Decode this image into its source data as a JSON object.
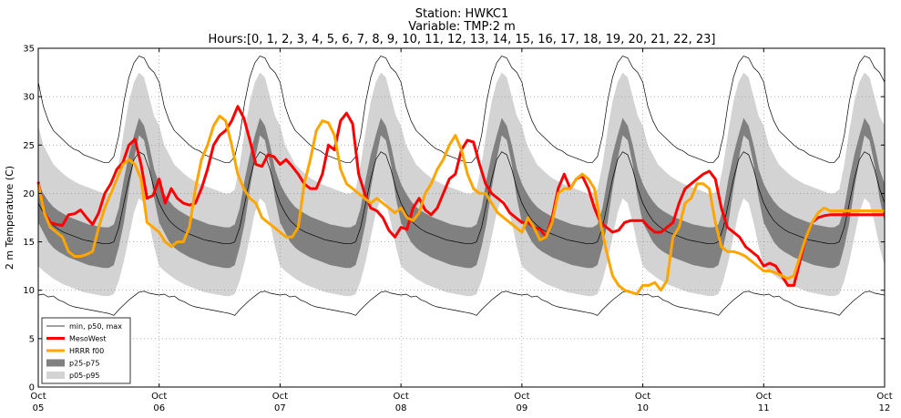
{
  "chart_data": {
    "type": "line",
    "title_lines": [
      "Station: HWKC1",
      "Variable: TMP:2 m",
      "Hours:[0, 1, 2, 3, 4, 5, 6, 7, 8, 9, 10, 11, 12, 13, 14, 15, 16, 17, 18, 19, 20, 21, 22, 23]"
    ],
    "ylabel": "2 m Temperature (C)",
    "xlabel": "",
    "ylim": [
      0,
      35
    ],
    "yticks": [
      0,
      5,
      10,
      15,
      20,
      25,
      30,
      35
    ],
    "xlim": [
      0,
      7
    ],
    "xticks": [
      {
        "x": 0,
        "line1": "Oct",
        "line2": "05"
      },
      {
        "x": 1,
        "line1": "Oct",
        "line2": "06"
      },
      {
        "x": 2,
        "line1": "Oct",
        "line2": "07"
      },
      {
        "x": 3,
        "line1": "Oct",
        "line2": "08"
      },
      {
        "x": 4,
        "line1": "Oct",
        "line2": "09"
      },
      {
        "x": 5,
        "line1": "Oct",
        "line2": "10"
      },
      {
        "x": 6,
        "line1": "Oct",
        "line2": "11"
      },
      {
        "x": 7,
        "line1": "Oct",
        "line2": "12"
      }
    ],
    "grid": true,
    "legend_position": "bottom-left",
    "legend": [
      {
        "label": "min, p50, max",
        "kind": "thin-line",
        "color": "#000000"
      },
      {
        "label": "MesoWest",
        "kind": "thick-line",
        "color": "#ff0000"
      },
      {
        "label": "HRRR f00",
        "kind": "thick-line",
        "color": "#ffa500"
      },
      {
        "label": "p25-p75",
        "kind": "patch",
        "color": "#808080"
      },
      {
        "label": "p05-p95",
        "kind": "patch",
        "color": "#d3d3d3"
      }
    ],
    "climatology_by_hour": {
      "hours": [
        0,
        1,
        2,
        3,
        4,
        5,
        6,
        7,
        8,
        9,
        10,
        11,
        12,
        13,
        14,
        15,
        16,
        17,
        18,
        19,
        20,
        21,
        22,
        23
      ],
      "min": [
        9.5,
        9.6,
        9.3,
        9.4,
        9.0,
        8.8,
        8.5,
        8.3,
        8.2,
        8.1,
        8.0,
        7.9,
        7.8,
        7.7,
        7.6,
        7.4,
        8.0,
        8.5,
        9.0,
        9.4,
        9.8,
        9.9,
        9.7,
        9.6
      ],
      "p05": [
        12.5,
        12.0,
        11.6,
        11.2,
        10.9,
        10.6,
        10.4,
        10.2,
        10.0,
        9.8,
        9.7,
        9.6,
        9.5,
        9.4,
        9.4,
        9.6,
        11.0,
        13.0,
        15.5,
        18.0,
        19.5,
        19.0,
        17.0,
        14.5
      ],
      "p25": [
        17.0,
        16.0,
        15.0,
        14.4,
        14.0,
        13.7,
        13.4,
        13.2,
        13.0,
        12.8,
        12.6,
        12.5,
        12.4,
        12.3,
        12.3,
        12.6,
        14.5,
        17.0,
        20.5,
        23.5,
        26.0,
        25.5,
        23.0,
        19.5
      ],
      "p50": [
        19.0,
        18.0,
        17.2,
        16.7,
        16.3,
        16.0,
        15.8,
        15.6,
        15.4,
        15.2,
        15.1,
        15.0,
        14.9,
        14.8,
        14.8,
        15.0,
        16.5,
        19.0,
        21.5,
        23.5,
        24.3,
        24.0,
        22.5,
        20.5
      ],
      "p75": [
        21.0,
        20.0,
        19.2,
        18.6,
        18.2,
        17.9,
        17.6,
        17.4,
        17.2,
        17.0,
        16.8,
        16.7,
        16.6,
        16.5,
        16.5,
        16.8,
        18.5,
        21.5,
        24.0,
        26.0,
        27.8,
        27.0,
        25.0,
        22.5
      ],
      "p95": [
        27.0,
        25.0,
        24.0,
        23.0,
        22.5,
        22.0,
        21.6,
        21.3,
        21.0,
        20.8,
        20.6,
        20.4,
        20.2,
        20.0,
        20.0,
        20.4,
        23.0,
        26.5,
        29.5,
        31.5,
        32.5,
        32.0,
        30.0,
        28.0
      ],
      "max": [
        31.5,
        29.0,
        27.5,
        26.5,
        26.0,
        25.5,
        25.0,
        24.6,
        24.4,
        24.0,
        23.8,
        23.6,
        23.4,
        23.2,
        23.2,
        23.8,
        26.0,
        29.5,
        32.0,
        33.5,
        34.2,
        34.0,
        33.0,
        32.5
      ]
    },
    "series": [
      {
        "name": "MesoWest",
        "color": "#ff0000",
        "x": [
          0,
          0.05,
          0.1,
          0.15,
          0.2,
          0.25,
          0.3,
          0.35,
          0.4,
          0.45,
          0.5,
          0.55,
          0.6,
          0.65,
          0.7,
          0.75,
          0.8,
          0.85,
          0.9,
          0.95,
          1.0,
          1.05,
          1.1,
          1.15,
          1.2,
          1.25,
          1.3,
          1.35,
          1.4,
          1.45,
          1.5,
          1.55,
          1.6,
          1.65,
          1.7,
          1.75,
          1.8,
          1.85,
          1.9,
          1.95,
          2.0,
          2.05,
          2.1,
          2.15,
          2.2,
          2.25,
          2.3,
          2.35,
          2.4,
          2.45,
          2.5,
          2.55,
          2.6,
          2.65,
          2.7,
          2.75,
          2.8,
          2.85,
          2.9,
          2.95,
          3.0,
          3.05,
          3.1,
          3.15,
          3.2,
          3.25,
          3.3,
          3.35,
          3.4,
          3.45,
          3.5,
          3.55,
          3.6,
          3.65,
          3.7,
          3.75,
          3.8,
          3.85,
          3.9,
          3.95,
          4.0,
          4.05,
          4.1,
          4.15,
          4.2,
          4.25,
          4.3,
          4.35,
          4.4,
          4.45,
          4.5,
          4.55,
          4.6,
          4.65,
          4.7,
          4.75,
          4.8,
          4.85,
          4.9,
          4.95,
          5.0,
          5.05,
          5.1,
          5.15,
          5.2,
          5.25,
          5.3,
          5.35,
          5.4,
          5.45,
          5.5,
          5.55,
          5.6,
          5.65,
          5.7,
          5.75,
          5.8,
          5.85,
          5.9,
          5.95,
          6.0,
          6.05,
          6.1,
          6.15,
          6.2,
          6.25,
          6.3,
          6.35,
          6.4,
          6.45,
          6.5,
          6.55,
          6.6,
          6.65,
          6.7,
          6.75,
          6.8,
          6.85,
          6.9,
          6.95,
          7.0
        ],
        "values": [
          21.2,
          18.0,
          17.0,
          16.8,
          16.7,
          17.8,
          17.9,
          18.3,
          17.5,
          16.8,
          18.0,
          20.0,
          21.0,
          22.5,
          23.2,
          25.0,
          25.6,
          23.0,
          19.5,
          19.8,
          21.5,
          19.0,
          20.5,
          19.5,
          19.0,
          18.8,
          19.0,
          20.5,
          22.5,
          25.0,
          26.0,
          26.5,
          27.5,
          29.0,
          27.8,
          25.5,
          23.0,
          22.8,
          24.0,
          23.8,
          23.0,
          23.5,
          22.8,
          22.0,
          21.0,
          20.5,
          20.5,
          22.0,
          25.0,
          24.5,
          27.5,
          28.3,
          27.2,
          22.0,
          20.0,
          18.5,
          18.2,
          17.5,
          16.2,
          15.5,
          16.5,
          16.3,
          18.5,
          19.5,
          18.3,
          17.8,
          18.5,
          20.0,
          21.5,
          22.0,
          24.5,
          25.5,
          25.3,
          23.0,
          21.0,
          20.0,
          19.5,
          19.0,
          18.0,
          17.5,
          17.0,
          17.0,
          16.5,
          16.3,
          15.5,
          17.5,
          20.5,
          22.0,
          20.5,
          21.5,
          21.8,
          20.5,
          18.5,
          17.0,
          16.5,
          16.0,
          16.2,
          17.0,
          17.2,
          17.2,
          17.2,
          16.5,
          16.0,
          16.0,
          16.5,
          17.0,
          19.0,
          20.5,
          21.0,
          21.5,
          22.0,
          22.3,
          21.5,
          18.5,
          16.5,
          16.0,
          15.5,
          14.5,
          14.0,
          13.5,
          12.5,
          12.8,
          12.5,
          11.5,
          10.5,
          10.5,
          13.0,
          15.5,
          17.0,
          17.5,
          17.7,
          17.8,
          17.8,
          17.8,
          17.8,
          17.8,
          17.8,
          17.8,
          17.8,
          17.8,
          17.8
        ]
      },
      {
        "name": "HRRR f00",
        "color": "#ffa500",
        "x": [
          0,
          0.05,
          0.1,
          0.15,
          0.2,
          0.25,
          0.3,
          0.35,
          0.4,
          0.45,
          0.5,
          0.55,
          0.6,
          0.65,
          0.7,
          0.75,
          0.8,
          0.85,
          0.9,
          0.95,
          1.0,
          1.05,
          1.1,
          1.15,
          1.2,
          1.25,
          1.3,
          1.35,
          1.4,
          1.45,
          1.5,
          1.55,
          1.6,
          1.65,
          1.7,
          1.75,
          1.8,
          1.85,
          1.9,
          1.95,
          2.0,
          2.05,
          2.1,
          2.15,
          2.2,
          2.25,
          2.3,
          2.35,
          2.4,
          2.45,
          2.5,
          2.55,
          2.6,
          2.65,
          2.7,
          2.75,
          2.8,
          2.85,
          2.9,
          2.95,
          3.0,
          3.05,
          3.1,
          3.15,
          3.2,
          3.25,
          3.3,
          3.35,
          3.4,
          3.45,
          3.5,
          3.55,
          3.6,
          3.65,
          3.7,
          3.75,
          3.8,
          3.85,
          3.9,
          3.95,
          4.0,
          4.05,
          4.1,
          4.15,
          4.2,
          4.25,
          4.3,
          4.35,
          4.4,
          4.45,
          4.5,
          4.55,
          4.6,
          4.65,
          4.7,
          4.75,
          4.8,
          4.85,
          4.9,
          4.95,
          5.0,
          5.05,
          5.1,
          5.15,
          5.2,
          5.25,
          5.3,
          5.35,
          5.4,
          5.45,
          5.5,
          5.55,
          5.6,
          5.65,
          5.7,
          5.75,
          5.8,
          5.85,
          5.9,
          5.95,
          6.0,
          6.05,
          6.1,
          6.15,
          6.2,
          6.25,
          6.3,
          6.35,
          6.4,
          6.45,
          6.5,
          6.55,
          6.6,
          6.65,
          6.7,
          6.75,
          6.8,
          6.85,
          6.9,
          6.95,
          7.0
        ],
        "values": [
          21.0,
          18.0,
          16.5,
          16.0,
          15.5,
          14.0,
          13.5,
          13.5,
          13.7,
          14.0,
          16.5,
          18.5,
          20.0,
          21.5,
          23.0,
          23.5,
          23.0,
          21.5,
          17.0,
          16.5,
          16.0,
          15.0,
          14.5,
          15.0,
          15.0,
          16.5,
          20.5,
          23.5,
          25.0,
          27.0,
          28.0,
          27.5,
          25.0,
          22.0,
          20.5,
          19.5,
          19.0,
          17.5,
          17.0,
          16.5,
          16.0,
          15.5,
          15.5,
          16.5,
          21.0,
          23.5,
          26.5,
          27.5,
          27.3,
          26.0,
          22.5,
          21.0,
          20.5,
          20.0,
          19.5,
          19.0,
          19.5,
          19.0,
          18.5,
          18.0,
          18.5,
          17.5,
          17.2,
          18.0,
          20.0,
          21.0,
          22.5,
          23.5,
          25.0,
          26.0,
          24.5,
          22.0,
          20.5,
          20.0,
          20.0,
          19.0,
          18.0,
          17.5,
          17.0,
          16.5,
          16.0,
          17.5,
          16.5,
          15.2,
          15.5,
          17.0,
          20.0,
          20.5,
          20.5,
          21.5,
          22.0,
          21.5,
          20.5,
          17.0,
          14.0,
          11.5,
          10.5,
          10.0,
          9.8,
          9.6,
          10.5,
          10.5,
          10.8,
          10.0,
          11.0,
          15.5,
          16.5,
          19.0,
          19.5,
          21.0,
          21.0,
          20.5,
          17.0,
          14.5,
          14.0,
          14.0,
          13.8,
          13.5,
          13.0,
          12.5,
          12.0,
          12.0,
          11.8,
          11.5,
          11.2,
          11.5,
          13.5,
          15.5,
          17.0,
          18.0,
          18.5,
          18.2,
          18.2,
          18.2,
          18.2,
          18.2,
          18.2,
          18.2,
          18.2,
          18.2,
          18.2
        ]
      }
    ]
  }
}
